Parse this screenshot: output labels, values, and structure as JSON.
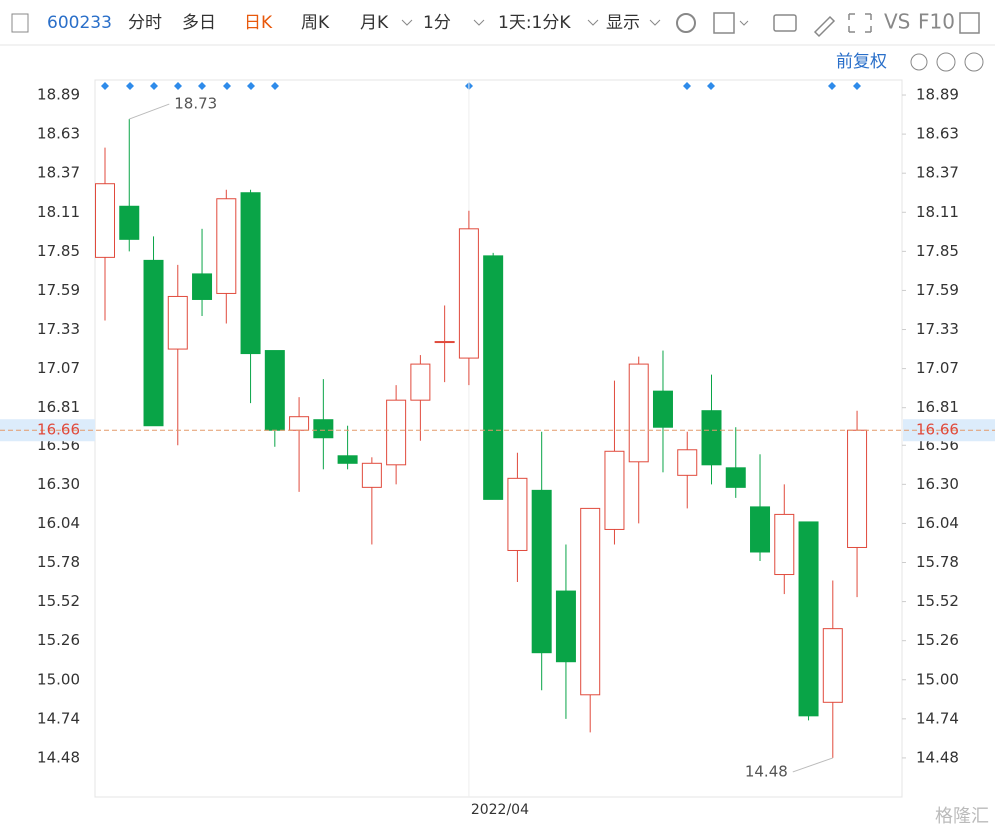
{
  "toolbar": {
    "code": "600233",
    "items": [
      "分时",
      "多日",
      "日K",
      "周K",
      "月K",
      "1分",
      "1天:1分K",
      "显示"
    ],
    "vs": "VS",
    "f10": "F10",
    "adjust": "前复权"
  },
  "watermark": "格隆汇",
  "chart_data": {
    "type": "candlestick",
    "categories": [
      null,
      null,
      null,
      null,
      null,
      null,
      null,
      null,
      null,
      null,
      null,
      null,
      null,
      null,
      null,
      "2022/04",
      null,
      null,
      null,
      null,
      null,
      null,
      null,
      null,
      null,
      null,
      null,
      null,
      null,
      null,
      null,
      null
    ],
    "open": [
      17.81,
      18.15,
      17.79,
      17.2,
      17.7,
      17.57,
      18.24,
      17.19,
      16.66,
      16.73,
      16.49,
      16.28,
      16.43,
      16.86,
      17.25,
      17.14,
      17.82,
      15.86,
      16.26,
      15.59,
      14.9,
      16.0,
      16.45,
      16.92,
      16.36,
      16.79,
      16.41,
      16.15,
      15.7,
      16.05,
      14.85,
      15.88
    ],
    "high": [
      18.54,
      18.73,
      17.95,
      17.76,
      18.0,
      18.26,
      18.26,
      17.19,
      16.88,
      17.0,
      16.69,
      16.48,
      16.96,
      17.16,
      17.49,
      18.12,
      17.84,
      16.51,
      16.65,
      15.9,
      16.14,
      16.99,
      17.15,
      17.19,
      16.65,
      17.03,
      16.68,
      16.5,
      16.3,
      16.05,
      15.66,
      16.79
    ],
    "low": [
      17.39,
      17.85,
      16.69,
      16.56,
      17.42,
      17.37,
      16.84,
      16.55,
      16.25,
      16.4,
      16.4,
      15.9,
      16.3,
      16.59,
      16.98,
      16.96,
      16.2,
      15.65,
      14.93,
      14.74,
      14.65,
      15.9,
      16.04,
      16.38,
      16.14,
      16.3,
      16.21,
      15.79,
      15.57,
      14.73,
      14.48,
      15.55
    ],
    "close": [
      18.3,
      17.93,
      16.69,
      17.55,
      17.53,
      18.2,
      17.17,
      16.66,
      16.75,
      16.61,
      16.44,
      16.44,
      16.86,
      17.1,
      17.25,
      18.0,
      16.2,
      16.34,
      15.18,
      15.12,
      16.14,
      16.52,
      17.1,
      16.68,
      16.53,
      16.43,
      16.28,
      15.85,
      16.1,
      14.76,
      15.34,
      16.66
    ],
    "up_color": "#e04a3c",
    "down_color": "#09a447",
    "ylim": [
      14.22,
      18.99
    ],
    "yticks": [
      14.48,
      14.74,
      {
        "value": 15,
        "label": "15.00"
      },
      15.26,
      15.52,
      15.78,
      16.04,
      {
        "value": 16.3,
        "label": "16.30"
      },
      16.56,
      16.81,
      17.07,
      17.33,
      17.59,
      17.85,
      18.11,
      18.37,
      18.63,
      18.89
    ],
    "grid": false
  }
}
